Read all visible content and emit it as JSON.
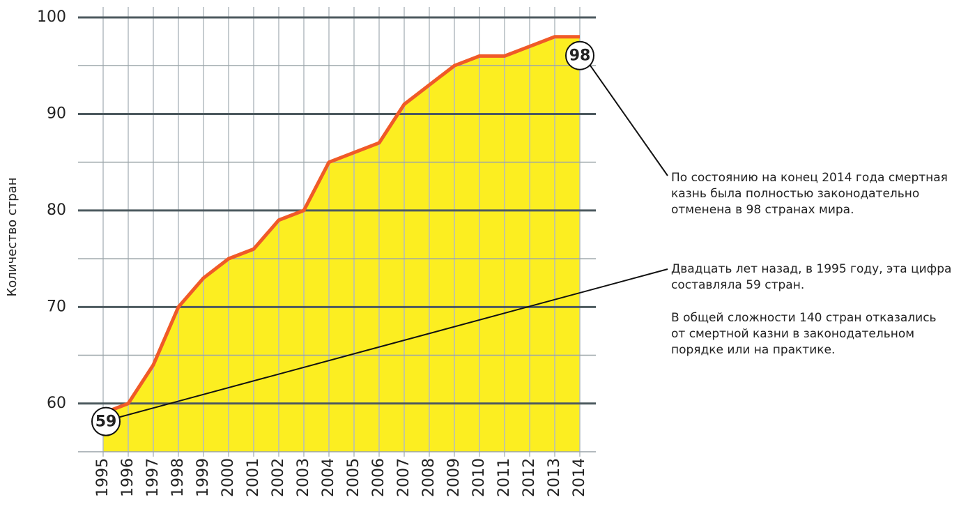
{
  "chart_data": {
    "type": "area",
    "ylabel": "Количество стран",
    "categories": [
      "1995",
      "1996",
      "1997",
      "1998",
      "1999",
      "2000",
      "2001",
      "2002",
      "2003",
      "2004",
      "2005",
      "2006",
      "2007",
      "2008",
      "2009",
      "2010",
      "2011",
      "2012",
      "2013",
      "2014"
    ],
    "values": [
      59,
      60,
      64,
      70,
      73,
      75,
      76,
      79,
      80,
      85,
      86,
      87,
      91,
      93,
      95,
      96,
      96,
      97,
      98,
      98
    ],
    "color": "#f05a28",
    "fill": "#fcee21",
    "ylim": [
      55,
      100
    ],
    "yticks": [
      60,
      70,
      80,
      90,
      100
    ],
    "minor_yticks": [
      65,
      75,
      85,
      95
    ],
    "grid": true,
    "notes": [
      [
        "По состоянию на конец 2014 года смертная",
        "казнь была полностью законодательно",
        "отменена в 98 странах мира."
      ],
      [
        "Двадцать лет назад, в 1995 году, эта цифра",
        "составляла 59 стран."
      ],
      [
        "В общей сложности 140 стран отказались",
        "от смертной казни в законодательном",
        "порядке или на практике."
      ]
    ]
  }
}
